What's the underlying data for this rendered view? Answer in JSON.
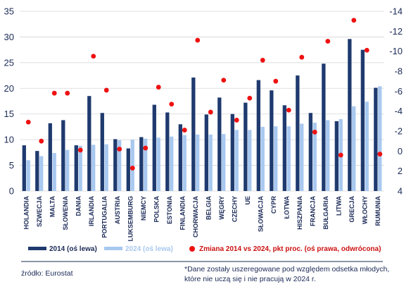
{
  "chart_data": {
    "type": "bar",
    "categories": [
      "HOLANDIA",
      "SZWECJA",
      "MALTA",
      "SŁOWENIA",
      "DANIA",
      "IRLANDIA",
      "PORTUGALIA",
      "AUSTRIA",
      "LUKSEMBURG",
      "NIEMCY",
      "POLSKA",
      "ESTONIA",
      "FINLANDIA",
      "CHORWACJA",
      "BELGIA",
      "WĘGRY",
      "CZECHY",
      "UE",
      "SŁOWACJA",
      "CYPR",
      "ŁOTWA",
      "HISZPANIA",
      "FRANCJA",
      "BUŁGARIA",
      "LITWA",
      "GRECJA",
      "WŁOCHY",
      "RUMUNIA"
    ],
    "series": [
      {
        "name": "2014 (oś lewa)",
        "axis": "left",
        "color": "#1f3a6e",
        "values": [
          8.9,
          7.8,
          13.2,
          13.8,
          8.9,
          18.5,
          15.2,
          10.1,
          8.3,
          10.5,
          16.8,
          15.3,
          13.0,
          22.1,
          14.9,
          18.2,
          15.0,
          17.2,
          21.6,
          19.6,
          16.7,
          22.5,
          15.2,
          24.8,
          13.6,
          29.6,
          27.5,
          20.1
        ]
      },
      {
        "name": "2024 (oś lewa)",
        "axis": "left",
        "color": "#a8c8ef",
        "values": [
          6.0,
          6.8,
          7.4,
          8.0,
          8.8,
          9.0,
          9.1,
          9.9,
          10.0,
          10.2,
          10.4,
          10.6,
          10.9,
          11.0,
          11.0,
          11.1,
          11.9,
          11.9,
          12.5,
          12.6,
          12.6,
          13.1,
          13.3,
          13.8,
          14.0,
          16.5,
          17.4,
          20.4
        ]
      },
      {
        "name": "Zmiana 2014 vs 2024, pkt proc. (oś prawa, odwrócona)",
        "axis": "right",
        "color": "#ee1111",
        "values": [
          -2.9,
          -1.0,
          -5.8,
          -5.8,
          -0.1,
          -9.5,
          -6.1,
          -0.2,
          1.7,
          -0.3,
          -6.4,
          -4.7,
          -2.1,
          -11.1,
          -3.9,
          -7.1,
          -3.1,
          -5.3,
          -9.1,
          -7.0,
          -4.1,
          -9.4,
          -1.9,
          -11.0,
          0.4,
          -13.1,
          -10.1,
          0.3
        ]
      }
    ],
    "y_left": {
      "ticks": [
        "0",
        "5",
        "10",
        "15",
        "20",
        "25",
        "30",
        "35"
      ],
      "ylim": [
        0,
        35
      ]
    },
    "y_right": {
      "ticks": [
        "-14",
        "-12",
        "-10",
        "-8",
        "-6",
        "-4",
        "-2",
        "0",
        "2",
        "4"
      ],
      "ylim": [
        -14,
        4
      ],
      "inverted": true
    },
    "grid": true,
    "legend_position": "bottom"
  },
  "footer": {
    "source": "źródło: Eurostat",
    "note_line1": "*Dane zostały uszeregowane pod względem odsetka młodych,",
    "note_line2": "które nie uczą się i nie pracują w 2024 r."
  }
}
